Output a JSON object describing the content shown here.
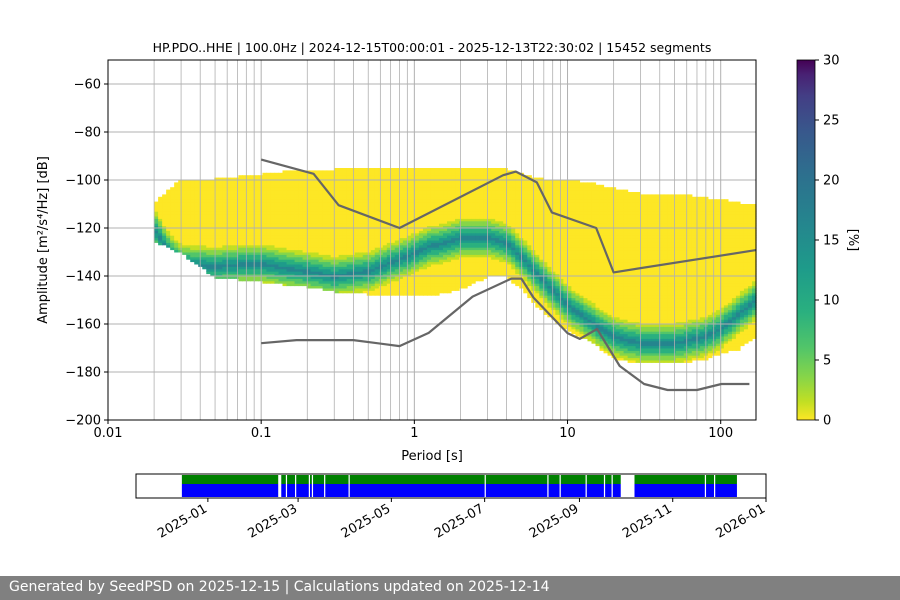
{
  "chart_data": {
    "type": "heatmap",
    "title": "HP.PDO..HHE | 100.0Hz | 2024-12-15T00:00:01 - 2025-12-13T22:30:02 | 15452 segments",
    "xlabel": "Period [s]",
    "ylabel": "Amplitude [m²/s⁴/Hz] [dB]",
    "x_scale": "log",
    "xlim": [
      0.01,
      170
    ],
    "ylim": [
      -200,
      -50
    ],
    "x_ticks": [
      {
        "value": 0.01,
        "label": "0.01"
      },
      {
        "value": 0.1,
        "label": "0.1"
      },
      {
        "value": 1,
        "label": "1"
      },
      {
        "value": 10,
        "label": "10"
      },
      {
        "value": 100,
        "label": "100"
      }
    ],
    "y_ticks": [
      {
        "value": -60,
        "label": "−60"
      },
      {
        "value": -80,
        "label": "−80"
      },
      {
        "value": -100,
        "label": "−100"
      },
      {
        "value": -120,
        "label": "−120"
      },
      {
        "value": -140,
        "label": "−140"
      },
      {
        "value": -160,
        "label": "−160"
      },
      {
        "value": -180,
        "label": "−180"
      },
      {
        "value": -200,
        "label": "−200"
      }
    ],
    "grid": true,
    "colorbar": {
      "label": "[%]",
      "range": [
        0,
        30
      ],
      "ticks": [
        {
          "value": 0,
          "label": "0"
        },
        {
          "value": 5,
          "label": "5"
        },
        {
          "value": 10,
          "label": "10"
        },
        {
          "value": 15,
          "label": "15"
        },
        {
          "value": 20,
          "label": "20"
        },
        {
          "value": 25,
          "label": "25"
        },
        {
          "value": 30,
          "label": "30"
        }
      ],
      "colormap": "viridis_r"
    },
    "psd_extent_period": [
      0.02,
      170
    ],
    "psd_envelope": {
      "x": [
        0.02,
        0.03,
        0.05,
        0.1,
        0.2,
        0.3,
        0.5,
        0.8,
        1.2,
        2,
        3,
        4,
        5,
        7,
        10,
        15,
        20,
        30,
        50,
        80,
        100,
        130,
        170
      ],
      "upper": [
        -110,
        -100,
        -100,
        -98,
        -96,
        -96,
        -95,
        -95,
        -96,
        -95,
        -95,
        -96,
        -98,
        -100,
        -100,
        -102,
        -104,
        -106,
        -106,
        -108,
        -108,
        -110,
        -110
      ],
      "lower": [
        -125,
        -130,
        -140,
        -142,
        -144,
        -146,
        -147,
        -148,
        -148,
        -145,
        -140,
        -140,
        -145,
        -155,
        -162,
        -168,
        -174,
        -176,
        -176,
        -174,
        -172,
        -170,
        -165
      ]
    },
    "mode": {
      "x": [
        0.02,
        0.025,
        0.03,
        0.05,
        0.08,
        0.1,
        0.2,
        0.3,
        0.5,
        0.8,
        1.2,
        2,
        3,
        4,
        5,
        7,
        10,
        15,
        20,
        30,
        50,
        80,
        100,
        130,
        170
      ],
      "y": [
        -120,
        -130,
        -135,
        -136,
        -135,
        -135,
        -138,
        -140,
        -138,
        -133,
        -128,
        -124,
        -124,
        -126,
        -132,
        -142,
        -152,
        -160,
        -165,
        -168,
        -168,
        -165,
        -162,
        -156,
        -150
      ]
    },
    "series": [
      {
        "name": "NHNM",
        "color": "#666666",
        "x": [
          0.1,
          0.22,
          0.32,
          0.8,
          3.8,
          4.6,
          6.3,
          7.9,
          15.4,
          20,
          354.8
        ],
        "y": [
          -91.5,
          -97.4,
          -110.5,
          -120,
          -98,
          -96.5,
          -101,
          -113.5,
          -120,
          -138.5,
          -126
        ]
      },
      {
        "name": "NLNM",
        "color": "#666666",
        "x": [
          0.1,
          0.17,
          0.4,
          0.8,
          1.24,
          2.4,
          4.3,
          5,
          6,
          10,
          12,
          15.6,
          21.9,
          31.6,
          45,
          70,
          101,
          154
        ],
        "y": [
          -168,
          -166.7,
          -166.7,
          -169.2,
          -163.7,
          -148.6,
          -141.1,
          -141.1,
          -149,
          -163.8,
          -166.2,
          -162.1,
          -177.5,
          -185,
          -187.5,
          -187.5,
          -185,
          -185
        ]
      }
    ],
    "availability": {
      "x_ticks": [
        {
          "value": "2025-01-01",
          "label": "2025-01"
        },
        {
          "value": "2025-03-01",
          "label": "2025-03"
        },
        {
          "value": "2025-05-01",
          "label": "2025-05"
        },
        {
          "value": "2025-07-01",
          "label": "2025-07"
        },
        {
          "value": "2025-09-01",
          "label": "2025-09"
        },
        {
          "value": "2025-11-01",
          "label": "2025-11"
        },
        {
          "value": "2026-01-01",
          "label": "2026-01"
        }
      ],
      "xlim": [
        "2024-11-15",
        "2026-01-01"
      ],
      "data_available": {
        "color": "#008000",
        "spans": [
          [
            "2024-12-15",
            "2025-02-16"
          ],
          [
            "2025-02-18",
            "2025-09-28"
          ],
          [
            "2025-10-07",
            "2025-12-13"
          ]
        ]
      },
      "psd_computed": {
        "color": "#0000ff",
        "spans": [
          [
            "2024-12-15",
            "2025-02-16"
          ],
          [
            "2025-02-18",
            "2025-09-28"
          ],
          [
            "2025-10-07",
            "2025-12-13"
          ]
        ]
      },
      "gaps": [
        "2025-02-21",
        "2025-02-27",
        "2025-03-08",
        "2025-03-10",
        "2025-03-18",
        "2025-04-03",
        "2025-07-01",
        "2025-08-11",
        "2025-08-19",
        "2025-09-05",
        "2025-09-17",
        "2025-09-22",
        "2025-11-22",
        "2025-11-28"
      ]
    }
  },
  "footer": {
    "text": "Generated by SeedPSD on 2025-12-15 | Calculations updated on 2025-12-14"
  }
}
